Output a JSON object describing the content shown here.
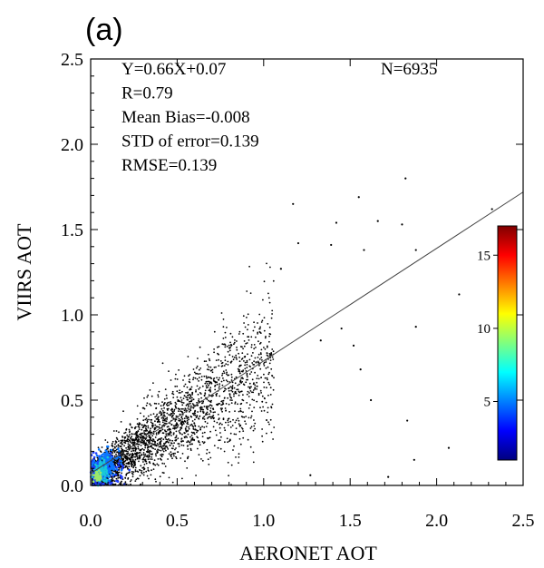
{
  "panel_label": "(a)",
  "chart_data": {
    "type": "scatter",
    "density_colored": true,
    "xlabel": "AERONET AOT",
    "ylabel": "VIIRS AOT",
    "xlim": [
      0.0,
      2.5
    ],
    "ylim": [
      0.0,
      2.5
    ],
    "xticks": [
      "0.0",
      "0.5",
      "1.0",
      "1.5",
      "2.0",
      "2.5"
    ],
    "yticks": [
      "0.0",
      "0.5",
      "1.0",
      "1.5",
      "2.0",
      "2.5"
    ],
    "grid": false,
    "regression": {
      "slope": 0.66,
      "intercept": 0.07
    },
    "stats": [
      {
        "key": "equation",
        "text": "Y=0.66X+0.07"
      },
      {
        "key": "r",
        "text": "R=0.79"
      },
      {
        "key": "mean-bias",
        "text": "Mean Bias=-0.008"
      },
      {
        "key": "std-error",
        "text": "STD of error=0.139"
      },
      {
        "key": "rmse",
        "text": "RMSE=0.139"
      }
    ],
    "n_label": "N=6935",
    "colorbar": {
      "ticks": [
        {
          "value": 5,
          "label": "5"
        },
        {
          "value": 10,
          "label": "10"
        },
        {
          "value": 15,
          "label": "15"
        }
      ],
      "min": 1,
      "max": 17,
      "colors": [
        "#00007f",
        "#0000ff",
        "#007fff",
        "#00ffff",
        "#7fff7f",
        "#ffff00",
        "#ff7f00",
        "#ff0000",
        "#7f0000"
      ]
    },
    "outlier_points": [
      [
        1.82,
        1.8
      ],
      [
        1.55,
        1.69
      ],
      [
        1.42,
        1.54
      ],
      [
        1.66,
        1.55
      ],
      [
        1.8,
        1.53
      ],
      [
        1.39,
        1.41
      ],
      [
        1.58,
        1.38
      ],
      [
        1.88,
        1.38
      ],
      [
        2.13,
        1.12
      ],
      [
        1.88,
        0.93
      ],
      [
        1.56,
        0.68
      ],
      [
        1.52,
        0.82
      ],
      [
        1.62,
        0.5
      ],
      [
        1.83,
        0.38
      ],
      [
        2.07,
        0.22
      ],
      [
        1.87,
        0.15
      ],
      [
        1.72,
        0.05
      ],
      [
        1.27,
        0.06
      ],
      [
        2.32,
        1.62
      ],
      [
        1.2,
        1.42
      ],
      [
        1.1,
        1.27
      ],
      [
        1.33,
        0.85
      ],
      [
        1.45,
        0.92
      ],
      [
        1.17,
        1.65
      ]
    ]
  }
}
